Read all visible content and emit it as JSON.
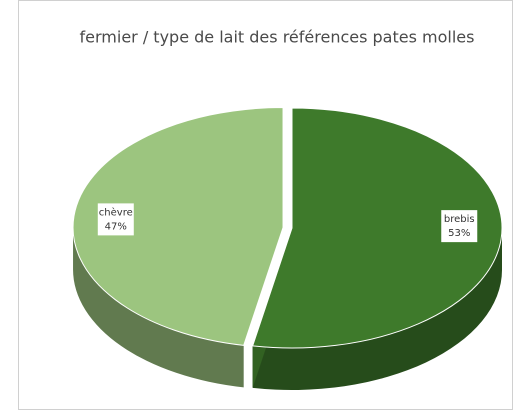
{
  "chart_data": {
    "type": "pie",
    "title": "fermier / type de lait des références pates molles",
    "categories": [
      "brebis",
      "chèvre"
    ],
    "values": [
      53,
      47
    ],
    "value_labels": [
      "53%",
      "47%"
    ],
    "colors": [
      "#3e7a2b",
      "#9cc57f"
    ],
    "three_d": true
  }
}
